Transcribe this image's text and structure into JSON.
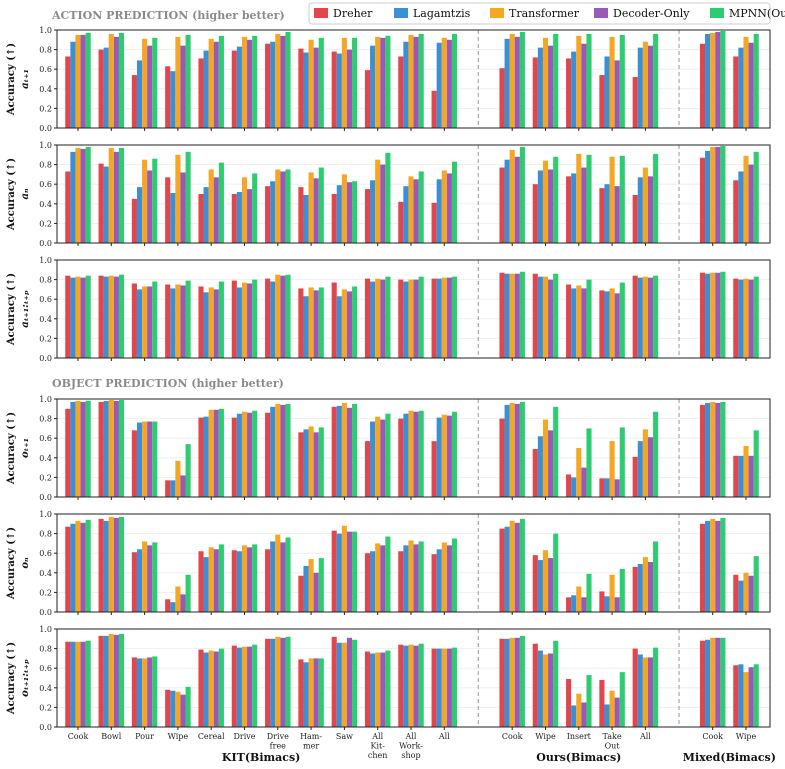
{
  "section_titles": {
    "action": "ACTION PREDICTION (higher better)",
    "object": "OBJECT PREDICTION (higher better)"
  },
  "group_labels": [
    "KIT(Bimacs)",
    "Ours(Bimacs)",
    "Mixed(Bimacs)"
  ],
  "ylim": [
    0.0,
    1.0
  ],
  "yticks": [
    "0.0",
    "0.2",
    "0.4",
    "0.6",
    "0.8",
    "1.0"
  ],
  "chart_data": {
    "type": "bar",
    "categories": [
      "Cook",
      "Bowl",
      "Pour",
      "Wipe",
      "Cereal",
      "Drive",
      "Drive\nfree",
      "Ham-\nmer",
      "Saw",
      "All\nKit-\nchen",
      "All\nWork-\nshop",
      "All",
      "Cook",
      "Wipe",
      "Insert",
      "Take\nOut",
      "All",
      "Cook",
      "Wipe"
    ],
    "category_groups": [
      0,
      0,
      0,
      0,
      0,
      0,
      0,
      0,
      0,
      0,
      0,
      0,
      1,
      1,
      1,
      1,
      1,
      2,
      2
    ],
    "series": [
      {
        "name": "Dreher",
        "color": "#e0464b"
      },
      {
        "name": "Lagamtzis",
        "color": "#3b8fd4"
      },
      {
        "name": "Transformer",
        "color": "#f5a623"
      },
      {
        "name": "Decoder-Only",
        "color": "#9b59b6"
      },
      {
        "name": "MPNN(Ours)",
        "color": "#2ecc71"
      }
    ],
    "panels": [
      {
        "section": "action",
        "ylabel": "Accuracy (↑)",
        "sublabel": "aₜ₊₁",
        "values": [
          [
            0.73,
            0.88,
            0.95,
            0.95,
            0.97
          ],
          [
            0.8,
            0.82,
            0.96,
            0.93,
            0.97
          ],
          [
            0.54,
            0.69,
            0.91,
            0.84,
            0.92
          ],
          [
            0.63,
            0.58,
            0.93,
            0.84,
            0.95
          ],
          [
            0.71,
            0.79,
            0.91,
            0.88,
            0.94
          ],
          [
            0.79,
            0.83,
            0.93,
            0.9,
            0.94
          ],
          [
            0.86,
            0.88,
            0.96,
            0.94,
            0.98
          ],
          [
            0.81,
            0.77,
            0.9,
            0.82,
            0.92
          ],
          [
            0.78,
            0.76,
            0.92,
            0.8,
            0.92
          ],
          [
            0.59,
            0.84,
            0.93,
            0.92,
            0.94
          ],
          [
            0.73,
            0.88,
            0.95,
            0.93,
            0.96
          ],
          [
            0.38,
            0.87,
            0.92,
            0.9,
            0.96
          ],
          [
            0.61,
            0.91,
            0.96,
            0.93,
            0.98
          ],
          [
            0.72,
            0.82,
            0.92,
            0.84,
            0.96
          ],
          [
            0.71,
            0.78,
            0.94,
            0.86,
            0.96
          ],
          [
            0.54,
            0.73,
            0.93,
            0.69,
            0.95
          ],
          [
            0.52,
            0.82,
            0.88,
            0.84,
            0.96
          ],
          [
            0.86,
            0.96,
            0.97,
            0.98,
            0.99
          ],
          [
            0.73,
            0.82,
            0.93,
            0.87,
            0.96
          ]
        ]
      },
      {
        "section": "action",
        "ylabel": "Accuracy (↑)",
        "sublabel": "aₙ",
        "values": [
          [
            0.73,
            0.93,
            0.97,
            0.96,
            0.98
          ],
          [
            0.81,
            0.78,
            0.97,
            0.93,
            0.97
          ],
          [
            0.45,
            0.57,
            0.85,
            0.74,
            0.86
          ],
          [
            0.67,
            0.51,
            0.9,
            0.72,
            0.93
          ],
          [
            0.5,
            0.57,
            0.75,
            0.67,
            0.82
          ],
          [
            0.5,
            0.52,
            0.67,
            0.55,
            0.71
          ],
          [
            0.58,
            0.63,
            0.75,
            0.73,
            0.75
          ],
          [
            0.57,
            0.49,
            0.72,
            0.66,
            0.77
          ],
          [
            0.5,
            0.59,
            0.7,
            0.62,
            0.63
          ],
          [
            0.55,
            0.64,
            0.85,
            0.8,
            0.92
          ],
          [
            0.42,
            0.58,
            0.68,
            0.65,
            0.73
          ],
          [
            0.41,
            0.65,
            0.74,
            0.71,
            0.83
          ],
          [
            0.77,
            0.85,
            0.95,
            0.88,
            0.98
          ],
          [
            0.6,
            0.74,
            0.84,
            0.75,
            0.88
          ],
          [
            0.68,
            0.71,
            0.91,
            0.77,
            0.9
          ],
          [
            0.56,
            0.6,
            0.88,
            0.58,
            0.89
          ],
          [
            0.49,
            0.67,
            0.77,
            0.68,
            0.91
          ],
          [
            0.87,
            0.94,
            0.98,
            0.98,
            0.99
          ],
          [
            0.64,
            0.73,
            0.89,
            0.8,
            0.93
          ]
        ]
      },
      {
        "section": "action",
        "ylabel": "Accuracy (↑)",
        "sublabel": "aₜ₊₁:ₜ₊ₚ",
        "values": [
          [
            0.84,
            0.82,
            0.83,
            0.82,
            0.84
          ],
          [
            0.84,
            0.83,
            0.84,
            0.83,
            0.85
          ],
          [
            0.76,
            0.7,
            0.73,
            0.73,
            0.78
          ],
          [
            0.75,
            0.71,
            0.75,
            0.74,
            0.79
          ],
          [
            0.73,
            0.67,
            0.72,
            0.7,
            0.78
          ],
          [
            0.79,
            0.72,
            0.77,
            0.76,
            0.8
          ],
          [
            0.81,
            0.78,
            0.85,
            0.84,
            0.85
          ],
          [
            0.71,
            0.63,
            0.72,
            0.69,
            0.72
          ],
          [
            0.77,
            0.63,
            0.7,
            0.68,
            0.73
          ],
          [
            0.81,
            0.78,
            0.81,
            0.8,
            0.83
          ],
          [
            0.8,
            0.78,
            0.8,
            0.8,
            0.83
          ],
          [
            0.81,
            0.81,
            0.82,
            0.82,
            0.83
          ],
          [
            0.87,
            0.86,
            0.86,
            0.86,
            0.88
          ],
          [
            0.86,
            0.83,
            0.83,
            0.8,
            0.86
          ],
          [
            0.75,
            0.71,
            0.74,
            0.71,
            0.8
          ],
          [
            0.69,
            0.68,
            0.71,
            0.66,
            0.77
          ],
          [
            0.84,
            0.82,
            0.83,
            0.82,
            0.84
          ],
          [
            0.87,
            0.86,
            0.87,
            0.87,
            0.88
          ],
          [
            0.81,
            0.8,
            0.81,
            0.8,
            0.83
          ]
        ]
      },
      {
        "section": "object",
        "ylabel": "Accuracy (↑)",
        "sublabel": "oₜ₊₁",
        "values": [
          [
            0.9,
            0.97,
            0.98,
            0.97,
            0.98
          ],
          [
            0.97,
            0.98,
            0.99,
            0.98,
            0.99
          ],
          [
            0.68,
            0.76,
            0.77,
            0.77,
            0.77
          ],
          [
            0.17,
            0.17,
            0.37,
            0.22,
            0.54
          ],
          [
            0.81,
            0.82,
            0.89,
            0.89,
            0.9
          ],
          [
            0.81,
            0.85,
            0.87,
            0.86,
            0.88
          ],
          [
            0.86,
            0.92,
            0.95,
            0.94,
            0.95
          ],
          [
            0.66,
            0.69,
            0.72,
            0.66,
            0.71
          ],
          [
            0.92,
            0.93,
            0.96,
            0.91,
            0.95
          ],
          [
            0.57,
            0.77,
            0.82,
            0.79,
            0.85
          ],
          [
            0.8,
            0.85,
            0.88,
            0.87,
            0.88
          ],
          [
            0.57,
            0.81,
            0.84,
            0.83,
            0.87
          ],
          [
            0.8,
            0.94,
            0.96,
            0.95,
            0.97
          ],
          [
            0.49,
            0.62,
            0.79,
            0.68,
            0.92
          ],
          [
            0.23,
            0.2,
            0.5,
            0.3,
            0.7
          ],
          [
            0.19,
            0.19,
            0.57,
            0.18,
            0.71
          ],
          [
            0.41,
            0.57,
            0.69,
            0.61,
            0.87
          ],
          [
            0.94,
            0.96,
            0.97,
            0.96,
            0.97
          ],
          [
            0.42,
            0.42,
            0.52,
            0.42,
            0.68
          ]
        ]
      },
      {
        "section": "object",
        "ylabel": "Accuracy (↑)",
        "sublabel": "oₙ",
        "values": [
          [
            0.87,
            0.9,
            0.93,
            0.91,
            0.94
          ],
          [
            0.95,
            0.93,
            0.97,
            0.96,
            0.97
          ],
          [
            0.61,
            0.64,
            0.72,
            0.68,
            0.71
          ],
          [
            0.13,
            0.1,
            0.26,
            0.18,
            0.38
          ],
          [
            0.62,
            0.56,
            0.66,
            0.64,
            0.69
          ],
          [
            0.63,
            0.62,
            0.68,
            0.66,
            0.69
          ],
          [
            0.64,
            0.72,
            0.79,
            0.71,
            0.76
          ],
          [
            0.37,
            0.47,
            0.54,
            0.4,
            0.55
          ],
          [
            0.83,
            0.8,
            0.88,
            0.82,
            0.82
          ],
          [
            0.6,
            0.62,
            0.7,
            0.68,
            0.77
          ],
          [
            0.62,
            0.68,
            0.73,
            0.69,
            0.72
          ],
          [
            0.59,
            0.64,
            0.71,
            0.68,
            0.75
          ],
          [
            0.85,
            0.87,
            0.93,
            0.91,
            0.95
          ],
          [
            0.58,
            0.53,
            0.63,
            0.55,
            0.8
          ],
          [
            0.15,
            0.17,
            0.26,
            0.15,
            0.39
          ],
          [
            0.21,
            0.16,
            0.38,
            0.15,
            0.44
          ],
          [
            0.46,
            0.49,
            0.56,
            0.51,
            0.72
          ],
          [
            0.9,
            0.93,
            0.95,
            0.93,
            0.96
          ],
          [
            0.38,
            0.32,
            0.4,
            0.37,
            0.57
          ]
        ]
      },
      {
        "section": "object",
        "ylabel": "Accuracy (↑)",
        "sublabel": "oₜ₊₁:ₜ₊ₚ",
        "values": [
          [
            0.87,
            0.87,
            0.87,
            0.87,
            0.88
          ],
          [
            0.93,
            0.93,
            0.95,
            0.94,
            0.95
          ],
          [
            0.71,
            0.7,
            0.7,
            0.71,
            0.72
          ],
          [
            0.38,
            0.37,
            0.36,
            0.33,
            0.41
          ],
          [
            0.79,
            0.76,
            0.78,
            0.77,
            0.8
          ],
          [
            0.83,
            0.81,
            0.82,
            0.82,
            0.84
          ],
          [
            0.9,
            0.9,
            0.92,
            0.91,
            0.92
          ],
          [
            0.69,
            0.66,
            0.7,
            0.7,
            0.7
          ],
          [
            0.92,
            0.86,
            0.86,
            0.91,
            0.89
          ],
          [
            0.77,
            0.75,
            0.76,
            0.76,
            0.78
          ],
          [
            0.84,
            0.83,
            0.84,
            0.83,
            0.85
          ],
          [
            0.8,
            0.8,
            0.8,
            0.8,
            0.81
          ],
          [
            0.9,
            0.9,
            0.91,
            0.91,
            0.93
          ],
          [
            0.85,
            0.78,
            0.74,
            0.75,
            0.88
          ],
          [
            0.49,
            0.22,
            0.34,
            0.25,
            0.53
          ],
          [
            0.48,
            0.23,
            0.37,
            0.3,
            0.56
          ],
          [
            0.8,
            0.74,
            0.71,
            0.71,
            0.81
          ],
          [
            0.88,
            0.89,
            0.91,
            0.91,
            0.91
          ],
          [
            0.63,
            0.64,
            0.56,
            0.61,
            0.64
          ]
        ]
      }
    ]
  }
}
